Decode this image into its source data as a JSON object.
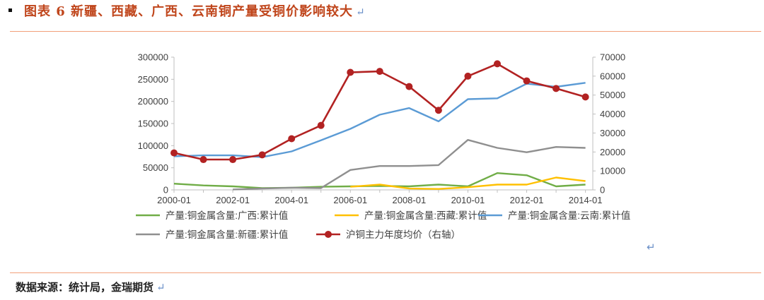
{
  "header": {
    "title": "图表 6 新疆、西藏、广西、云南铜产量受铜价影响较大",
    "return_mark": "↵"
  },
  "footer": {
    "source": "数据来源：统计局，金瑞期货",
    "return_mark": "↵"
  },
  "standalone_mark": "↵",
  "chart_data": {
    "type": "line",
    "x": [
      2000,
      2001,
      2002,
      2003,
      2004,
      2005,
      2006,
      2007,
      2008,
      2009,
      2010,
      2011,
      2012,
      2013,
      2014
    ],
    "x_tick_labels": [
      "2000-01",
      "2002-01",
      "2004-01",
      "2006-01",
      "2008-01",
      "2010-01",
      "2012-01",
      "2014-01"
    ],
    "x_tick_years": [
      2000,
      2002,
      2004,
      2006,
      2008,
      2010,
      2012,
      2014
    ],
    "y_left": {
      "min": 0,
      "max": 300000,
      "ticks": [
        "0",
        "50000",
        "100000",
        "150000",
        "200000",
        "250000",
        "300000"
      ]
    },
    "y_right": {
      "min": 0,
      "max": 70000,
      "ticks": [
        "0",
        "10000",
        "20000",
        "30000",
        "40000",
        "50000",
        "60000",
        "70000"
      ]
    },
    "grid": false,
    "legend_position": "bottom",
    "series": [
      {
        "name": "产量:铜金属含量:广西:累计值",
        "color": "#70ad47",
        "axis": "left",
        "marker": false,
        "values": [
          14000,
          10000,
          8000,
          4000,
          5000,
          7000,
          8000,
          9000,
          8000,
          12000,
          8000,
          38000,
          33000,
          8000,
          12000
        ]
      },
      {
        "name": "产量:铜金属含量:西藏:累计值",
        "color": "#ffc000",
        "axis": "left",
        "marker": false,
        "values": [
          null,
          null,
          null,
          null,
          null,
          null,
          7000,
          12000,
          3000,
          2000,
          6000,
          12000,
          12000,
          28000,
          20000
        ]
      },
      {
        "name": "产量:铜金属含量:云南:累计值",
        "color": "#5b9bd5",
        "axis": "left",
        "marker": false,
        "values": [
          76000,
          78000,
          78000,
          74000,
          87000,
          112000,
          138000,
          170000,
          185000,
          155000,
          205000,
          207000,
          240000,
          233000,
          242000
        ]
      },
      {
        "name": "产量:铜金属含量:新疆:累计值",
        "color": "#8f8f8f",
        "axis": "left",
        "marker": false,
        "values": [
          null,
          null,
          1000,
          3000,
          5000,
          4000,
          45000,
          54000,
          54000,
          56000,
          113000,
          95000,
          85000,
          97000,
          95000
        ]
      },
      {
        "name": "沪铜主力年度均价（右轴）",
        "color": "#b22222",
        "axis": "right",
        "marker": true,
        "values": [
          19500,
          16000,
          16000,
          18500,
          27000,
          34000,
          62000,
          62500,
          54500,
          42000,
          60000,
          66500,
          57500,
          53500,
          49000
        ]
      }
    ]
  }
}
